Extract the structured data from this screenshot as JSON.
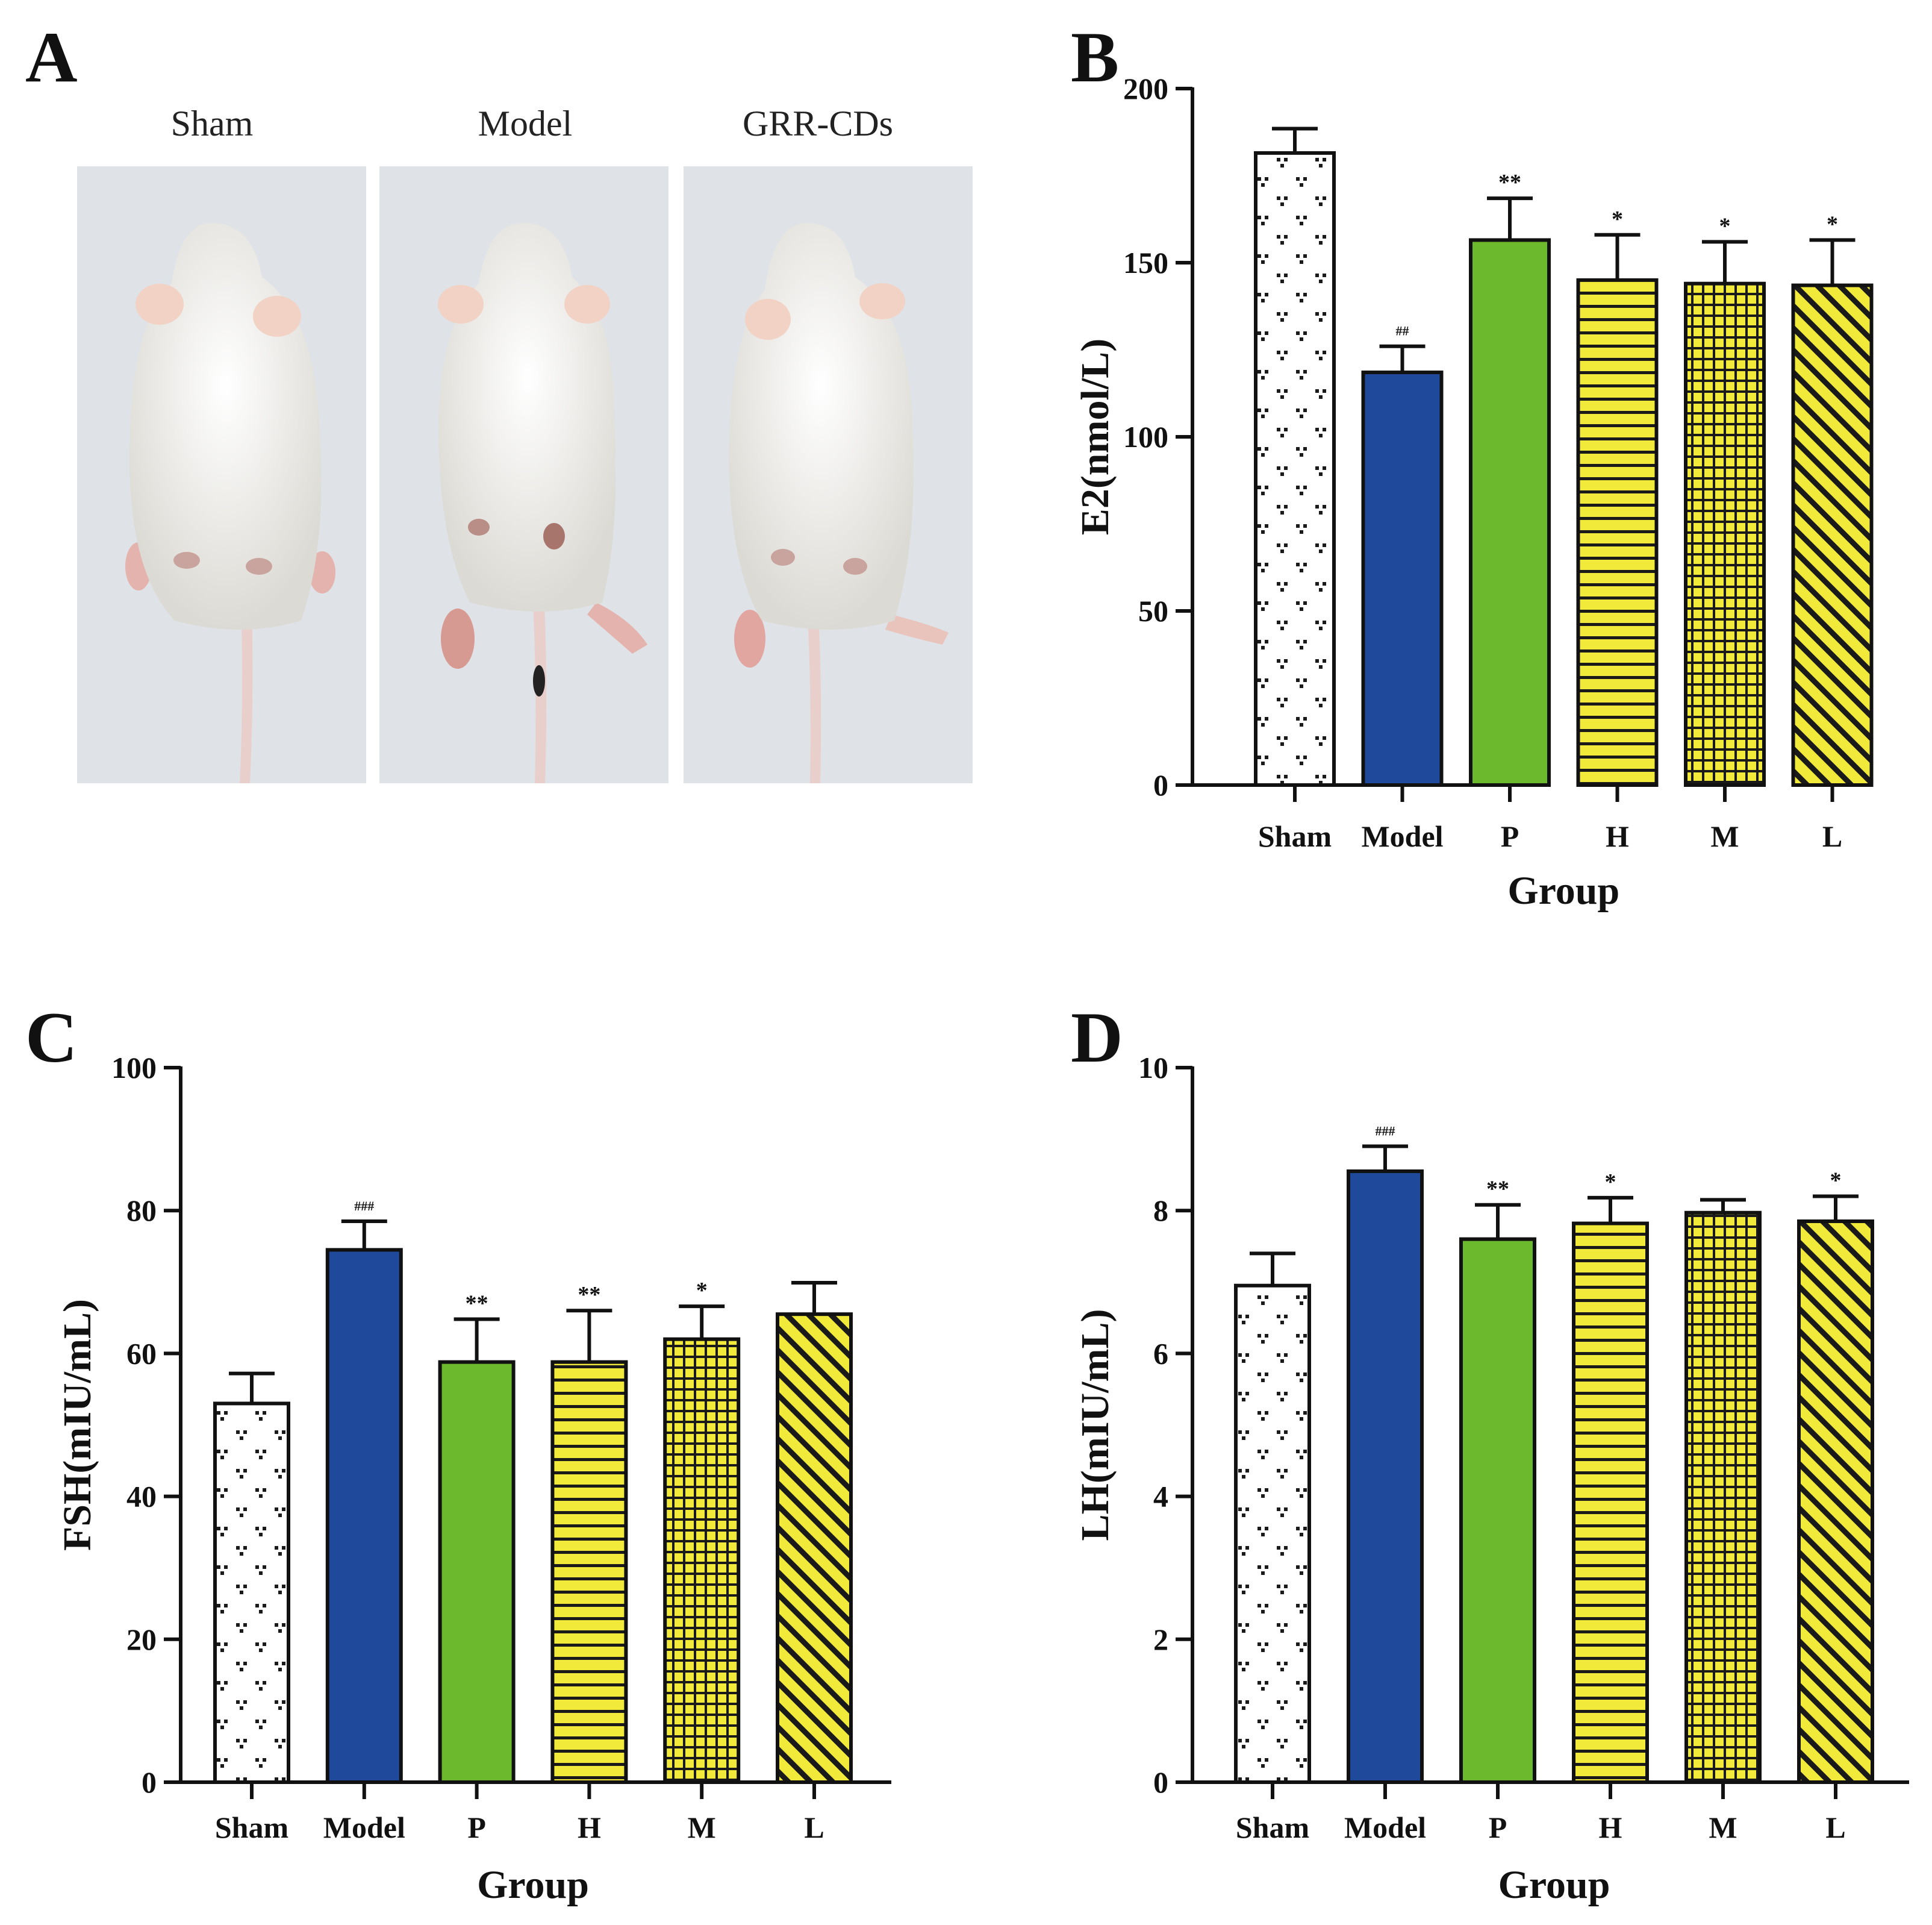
{
  "panels": {
    "a": {
      "letter": "A"
    },
    "b": {
      "letter": "B"
    },
    "c": {
      "letter": "C"
    },
    "d": {
      "letter": "D"
    }
  },
  "photos": [
    {
      "label": "Sham"
    },
    {
      "label": "Model"
    },
    {
      "label": "GRR-CDs"
    }
  ],
  "colors": {
    "sham": "#ffffff",
    "model": "#1f4a9c",
    "p": "#6db92e",
    "yellow": "#f2ea3a",
    "ink": "#1a1a1a"
  },
  "chart_data": [
    {
      "type": "bar",
      "panel": "B",
      "categories": [
        "Sham",
        "Model",
        "P",
        "H",
        "M",
        "L"
      ],
      "values": [
        181.5,
        118.5,
        156.5,
        145,
        144,
        143.5
      ],
      "errors": [
        7,
        7.5,
        12,
        13,
        12,
        13
      ],
      "annotations": [
        "",
        "##",
        "**",
        "*",
        "*",
        "*"
      ],
      "ylabel": "E2(nmol/L)",
      "xlabel": "Group",
      "ylim": [
        0,
        200
      ],
      "yticks": [
        0,
        50,
        100,
        150,
        200
      ]
    },
    {
      "type": "bar",
      "panel": "C",
      "categories": [
        "Sham",
        "Model",
        "P",
        "H",
        "M",
        "L"
      ],
      "values": [
        53,
        74.5,
        58.8,
        58.8,
        62,
        65.5
      ],
      "errors": [
        4.2,
        4,
        6,
        7.2,
        4.6,
        4.4
      ],
      "annotations": [
        "",
        "###",
        "**",
        "**",
        "*",
        ""
      ],
      "ylabel": "FSH(mIU/mL)",
      "xlabel": "Group",
      "ylim": [
        0,
        100
      ],
      "yticks": [
        0,
        20,
        40,
        60,
        80,
        100
      ]
    },
    {
      "type": "bar",
      "panel": "D",
      "categories": [
        "Sham",
        "Model",
        "P",
        "H",
        "M",
        "L"
      ],
      "values": [
        6.95,
        8.55,
        7.6,
        7.82,
        7.97,
        7.85
      ],
      "errors": [
        0.45,
        0.35,
        0.48,
        0.36,
        0.18,
        0.35
      ],
      "annotations": [
        "",
        "###",
        "**",
        "*",
        "",
        "*"
      ],
      "ylabel": "LH(mIU/mL)",
      "xlabel": "Group",
      "ylim": [
        0,
        10
      ],
      "yticks": [
        0,
        2,
        4,
        6,
        8,
        10
      ]
    }
  ]
}
